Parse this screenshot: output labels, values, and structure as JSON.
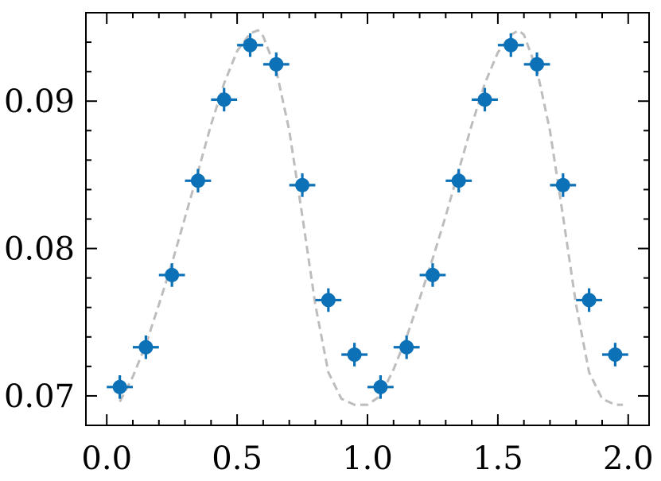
{
  "chart_data": {
    "type": "scatter",
    "title": "",
    "xlabel": "",
    "ylabel": "",
    "xlim": [
      -0.08,
      2.08
    ],
    "ylim": [
      0.068,
      0.096
    ],
    "x_ticks": [
      {
        "value": 0.0,
        "label": "0.0"
      },
      {
        "value": 0.5,
        "label": "0.5"
      },
      {
        "value": 1.0,
        "label": "1.0"
      },
      {
        "value": 1.5,
        "label": "1.5"
      },
      {
        "value": 2.0,
        "label": "2.0"
      }
    ],
    "y_ticks": [
      {
        "value": 0.07,
        "label": "0.07"
      },
      {
        "value": 0.08,
        "label": "0.08"
      },
      {
        "value": 0.09,
        "label": "0.09"
      }
    ],
    "grid": false,
    "colors": {
      "points": "#0c71b7",
      "model": "#bdbdbd",
      "axes": "#000000"
    },
    "series": [
      {
        "kind": "points_with_errorbars",
        "x": [
          0.05,
          0.15,
          0.25,
          0.35,
          0.45,
          0.55,
          0.65,
          0.75,
          0.85,
          0.95,
          1.05,
          1.15,
          1.25,
          1.35,
          1.45,
          1.55,
          1.65,
          1.75,
          1.85,
          1.95
        ],
        "y": [
          0.0706,
          0.0733,
          0.0782,
          0.0846,
          0.0901,
          0.0938,
          0.0925,
          0.0843,
          0.0765,
          0.0728,
          0.0706,
          0.0733,
          0.0782,
          0.0846,
          0.0901,
          0.0938,
          0.0925,
          0.0843,
          0.0765,
          0.0728
        ],
        "xerr": 0.05,
        "yerr": 0.0008
      },
      {
        "kind": "dashed_line",
        "x": [
          0.05,
          0.1,
          0.15,
          0.2,
          0.25,
          0.3,
          0.35,
          0.4,
          0.45,
          0.5,
          0.55,
          0.58,
          0.6,
          0.65,
          0.7,
          0.75,
          0.8,
          0.85,
          0.9,
          0.95,
          1.0,
          1.05,
          1.1,
          1.15,
          1.2,
          1.25,
          1.3,
          1.35,
          1.4,
          1.45,
          1.5,
          1.55,
          1.58,
          1.6,
          1.65,
          1.7,
          1.75,
          1.8,
          1.85,
          1.9,
          1.95,
          1.98
        ],
        "y": [
          0.0696,
          0.0713,
          0.0735,
          0.0762,
          0.079,
          0.0821,
          0.0852,
          0.0884,
          0.0912,
          0.0934,
          0.0946,
          0.0948,
          0.0944,
          0.0921,
          0.088,
          0.0822,
          0.0762,
          0.0716,
          0.0698,
          0.0694,
          0.0694,
          0.07,
          0.0718,
          0.074,
          0.0766,
          0.0793,
          0.0822,
          0.0853,
          0.0884,
          0.0912,
          0.0933,
          0.0945,
          0.0948,
          0.0945,
          0.0921,
          0.088,
          0.0822,
          0.0762,
          0.0716,
          0.0698,
          0.0694,
          0.0694
        ]
      }
    ]
  }
}
